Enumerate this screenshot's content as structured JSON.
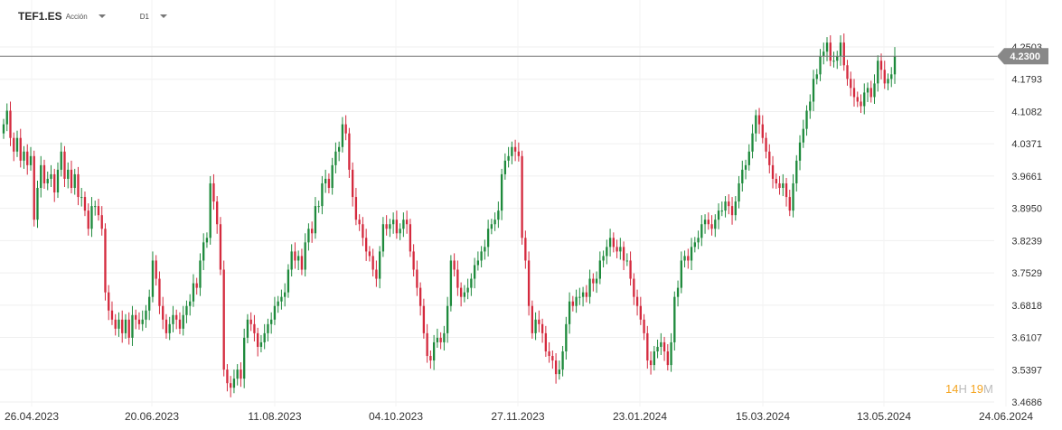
{
  "header": {
    "symbol": "TEF1.ES",
    "instrument_type": "Acción",
    "timeframe": "D1"
  },
  "countdown": {
    "hours": "14",
    "hours_unit": "H",
    "minutes": "19",
    "minutes_unit": "M"
  },
  "colors": {
    "up": "#1e8a3c",
    "down": "#d42a3e",
    "price_line": "#777777",
    "price_tag": "#888888"
  },
  "chart_data": {
    "type": "candlestick",
    "xlabels": [
      "26.04.2023",
      "20.06.2023",
      "11.08.2023",
      "04.10.2023",
      "27.11.2023",
      "23.01.2024",
      "15.03.2024",
      "13.05.2024",
      "24.06.2024"
    ],
    "yticks": [
      3.4686,
      3.5397,
      3.6107,
      3.6818,
      3.7529,
      3.8239,
      3.895,
      3.9661,
      4.0371,
      4.1082,
      4.1793,
      4.2503
    ],
    "ylim": [
      3.4686,
      4.2503
    ],
    "current_price": 4.23,
    "current_price_label": "4.2300",
    "grid": true,
    "close": [
      4.08,
      4.11,
      4.05,
      4.02,
      4.05,
      4.0,
      4.02,
      3.99,
      4.01,
      3.87,
      3.94,
      3.99,
      3.95,
      3.96,
      3.97,
      3.93,
      3.98,
      4.02,
      3.96,
      3.98,
      3.94,
      3.97,
      3.92,
      3.92,
      3.89,
      3.85,
      3.9,
      3.9,
      3.88,
      3.85,
      3.71,
      3.67,
      3.65,
      3.63,
      3.65,
      3.62,
      3.65,
      3.61,
      3.66,
      3.65,
      3.64,
      3.65,
      3.67,
      3.7,
      3.78,
      3.74,
      3.68,
      3.65,
      3.62,
      3.64,
      3.66,
      3.65,
      3.63,
      3.66,
      3.68,
      3.69,
      3.73,
      3.72,
      3.78,
      3.82,
      3.83,
      3.95,
      3.91,
      3.86,
      3.76,
      3.54,
      3.51,
      3.5,
      3.52,
      3.54,
      3.52,
      3.61,
      3.65,
      3.64,
      3.62,
      3.59,
      3.6,
      3.62,
      3.64,
      3.65,
      3.68,
      3.69,
      3.7,
      3.71,
      3.76,
      3.8,
      3.78,
      3.79,
      3.76,
      3.82,
      3.85,
      3.84,
      3.9,
      3.9,
      3.95,
      3.96,
      3.94,
      3.99,
      4.02,
      4.03,
      4.08,
      4.06,
      3.98,
      3.92,
      3.87,
      3.86,
      3.83,
      3.8,
      3.79,
      3.76,
      3.74,
      3.8,
      3.86,
      3.85,
      3.86,
      3.87,
      3.84,
      3.85,
      3.87,
      3.86,
      3.8,
      3.76,
      3.72,
      3.68,
      3.62,
      3.57,
      3.56,
      3.6,
      3.61,
      3.6,
      3.62,
      3.68,
      3.78,
      3.76,
      3.72,
      3.7,
      3.71,
      3.72,
      3.74,
      3.77,
      3.78,
      3.8,
      3.81,
      3.85,
      3.86,
      3.87,
      3.89,
      3.97,
      4.0,
      4.01,
      4.03,
      4.02,
      4.01,
      3.83,
      3.78,
      3.68,
      3.62,
      3.65,
      3.64,
      3.62,
      3.58,
      3.57,
      3.56,
      3.53,
      3.54,
      3.58,
      3.64,
      3.69,
      3.68,
      3.7,
      3.7,
      3.71,
      3.7,
      3.74,
      3.73,
      3.74,
      3.78,
      3.79,
      3.81,
      3.83,
      3.81,
      3.8,
      3.81,
      3.78,
      3.78,
      3.74,
      3.7,
      3.68,
      3.65,
      3.62,
      3.56,
      3.55,
      3.58,
      3.59,
      3.6,
      3.58,
      3.55,
      3.6,
      3.7,
      3.72,
      3.78,
      3.79,
      3.78,
      3.81,
      3.82,
      3.83,
      3.86,
      3.87,
      3.86,
      3.85,
      3.87,
      3.89,
      3.89,
      3.91,
      3.9,
      3.88,
      3.91,
      3.95,
      3.98,
      3.99,
      4.02,
      4.06,
      4.1,
      4.08,
      4.05,
      4.02,
      3.99,
      3.96,
      3.95,
      3.94,
      3.95,
      3.92,
      3.89,
      3.95,
      4.0,
      4.04,
      4.07,
      4.11,
      4.13,
      4.18,
      4.19,
      4.23,
      4.24,
      4.26,
      4.22,
      4.22,
      4.23,
      4.26,
      4.21,
      4.18,
      4.16,
      4.14,
      4.13,
      4.12,
      4.15,
      4.16,
      4.14,
      4.17,
      4.22,
      4.2,
      4.17,
      4.18,
      4.19,
      4.23
    ]
  }
}
